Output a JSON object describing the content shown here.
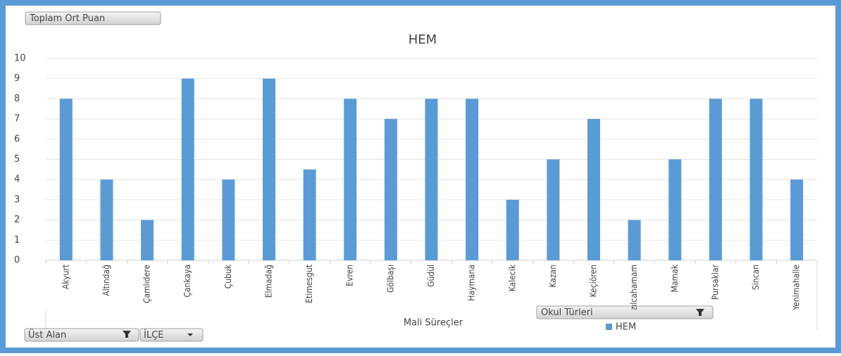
{
  "chart_data": {
    "type": "bar",
    "title": "HEM",
    "x_label": "Mali Süreçler",
    "categories": [
      "Akyurt",
      "Altındağ",
      "Çamlıdere",
      "Çankaya",
      "Çubuk",
      "Elmadağ",
      "Etimesgut",
      "Evren",
      "Gölbaşı",
      "Güdül",
      "Haymana",
      "Kalecik",
      "Kazan",
      "Keçiören",
      "Kızılcahamam",
      "Mamak",
      "Pursaklar",
      "Sincan",
      "Yenimahalle"
    ],
    "series": [
      {
        "name": "HEM",
        "color": "#5b9bd5",
        "values": [
          8,
          4,
          2,
          9,
          4,
          9,
          4.5,
          8,
          7,
          8,
          8,
          3,
          5,
          7,
          2,
          5,
          8,
          8,
          4
        ]
      }
    ],
    "ylim": [
      0,
      10
    ],
    "yticks": [
      0,
      1,
      2,
      3,
      4,
      5,
      6,
      7,
      8,
      9,
      10
    ],
    "grid": true,
    "legend": "bottom"
  },
  "buttons": {
    "value_field": "Toplam Ort Puan",
    "filter_1": "Üst Alan",
    "filter_2": "İLÇE",
    "filter_3": "Okul Türleri"
  }
}
